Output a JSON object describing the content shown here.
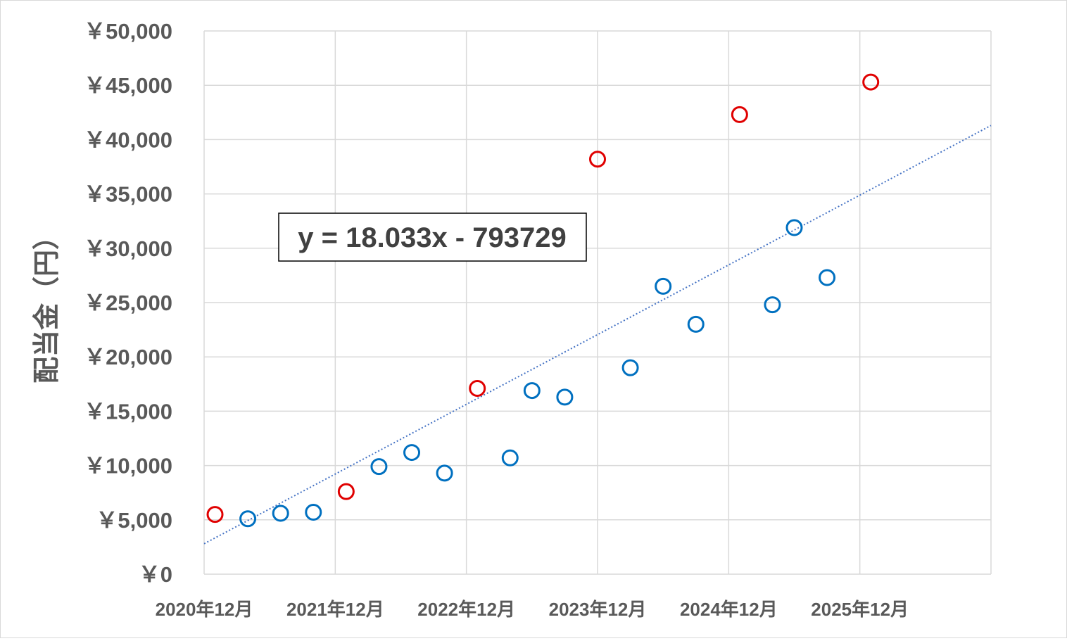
{
  "chart_data": {
    "type": "scatter",
    "ylabel": "配当金（円）",
    "xlabel": "",
    "x_ticks": [
      "2020年12月",
      "2021年12月",
      "2022年12月",
      "2023年12月",
      "2024年12月",
      "2025年12月"
    ],
    "y_ticks": [
      "￥0",
      "￥5,000",
      "￥10,000",
      "￥15,000",
      "￥20,000",
      "￥25,000",
      "￥30,000",
      "￥35,000",
      "￥40,000",
      "￥45,000",
      "￥50,000"
    ],
    "ylim": [
      0,
      50000
    ],
    "xlim": [
      "2020-12",
      "2026-12"
    ],
    "grid": true,
    "colors": {
      "december": "#e00000",
      "other": "#0070c0",
      "trendline": "#4472c4",
      "gridline": "#d9d9d9",
      "text": "#595959"
    },
    "points": [
      {
        "date": "2021-01",
        "value": 5500,
        "series": "december"
      },
      {
        "date": "2021-04",
        "value": 5100,
        "series": "other"
      },
      {
        "date": "2021-07",
        "value": 5600,
        "series": "other"
      },
      {
        "date": "2021-10",
        "value": 5700,
        "series": "other"
      },
      {
        "date": "2022-01",
        "value": 7600,
        "series": "december"
      },
      {
        "date": "2022-04",
        "value": 9900,
        "series": "other"
      },
      {
        "date": "2022-07",
        "value": 11200,
        "series": "other"
      },
      {
        "date": "2022-10",
        "value": 9300,
        "series": "other"
      },
      {
        "date": "2023-01",
        "value": 17100,
        "series": "december"
      },
      {
        "date": "2023-04",
        "value": 10700,
        "series": "other"
      },
      {
        "date": "2023-06",
        "value": 16900,
        "series": "other"
      },
      {
        "date": "2023-09",
        "value": 16300,
        "series": "other"
      },
      {
        "date": "2023-12",
        "value": 38200,
        "series": "december"
      },
      {
        "date": "2024-03",
        "value": 19000,
        "series": "other"
      },
      {
        "date": "2024-06",
        "value": 26500,
        "series": "other"
      },
      {
        "date": "2024-09",
        "value": 23000,
        "series": "other"
      },
      {
        "date": "2025-01",
        "value": 42300,
        "series": "december"
      },
      {
        "date": "2025-04",
        "value": 24800,
        "series": "other"
      },
      {
        "date": "2025-06",
        "value": 31900,
        "series": "other"
      },
      {
        "date": "2025-09",
        "value": 27300,
        "series": "other"
      },
      {
        "date": "2026-01",
        "value": 45300,
        "series": "december"
      }
    ],
    "trendline": {
      "type": "linear",
      "style": "dotted",
      "equation": "y = 18.033x - 793729",
      "start": {
        "date": "2020-12",
        "value": 2800
      },
      "end": {
        "date": "2026-12",
        "value": 41300
      }
    }
  }
}
